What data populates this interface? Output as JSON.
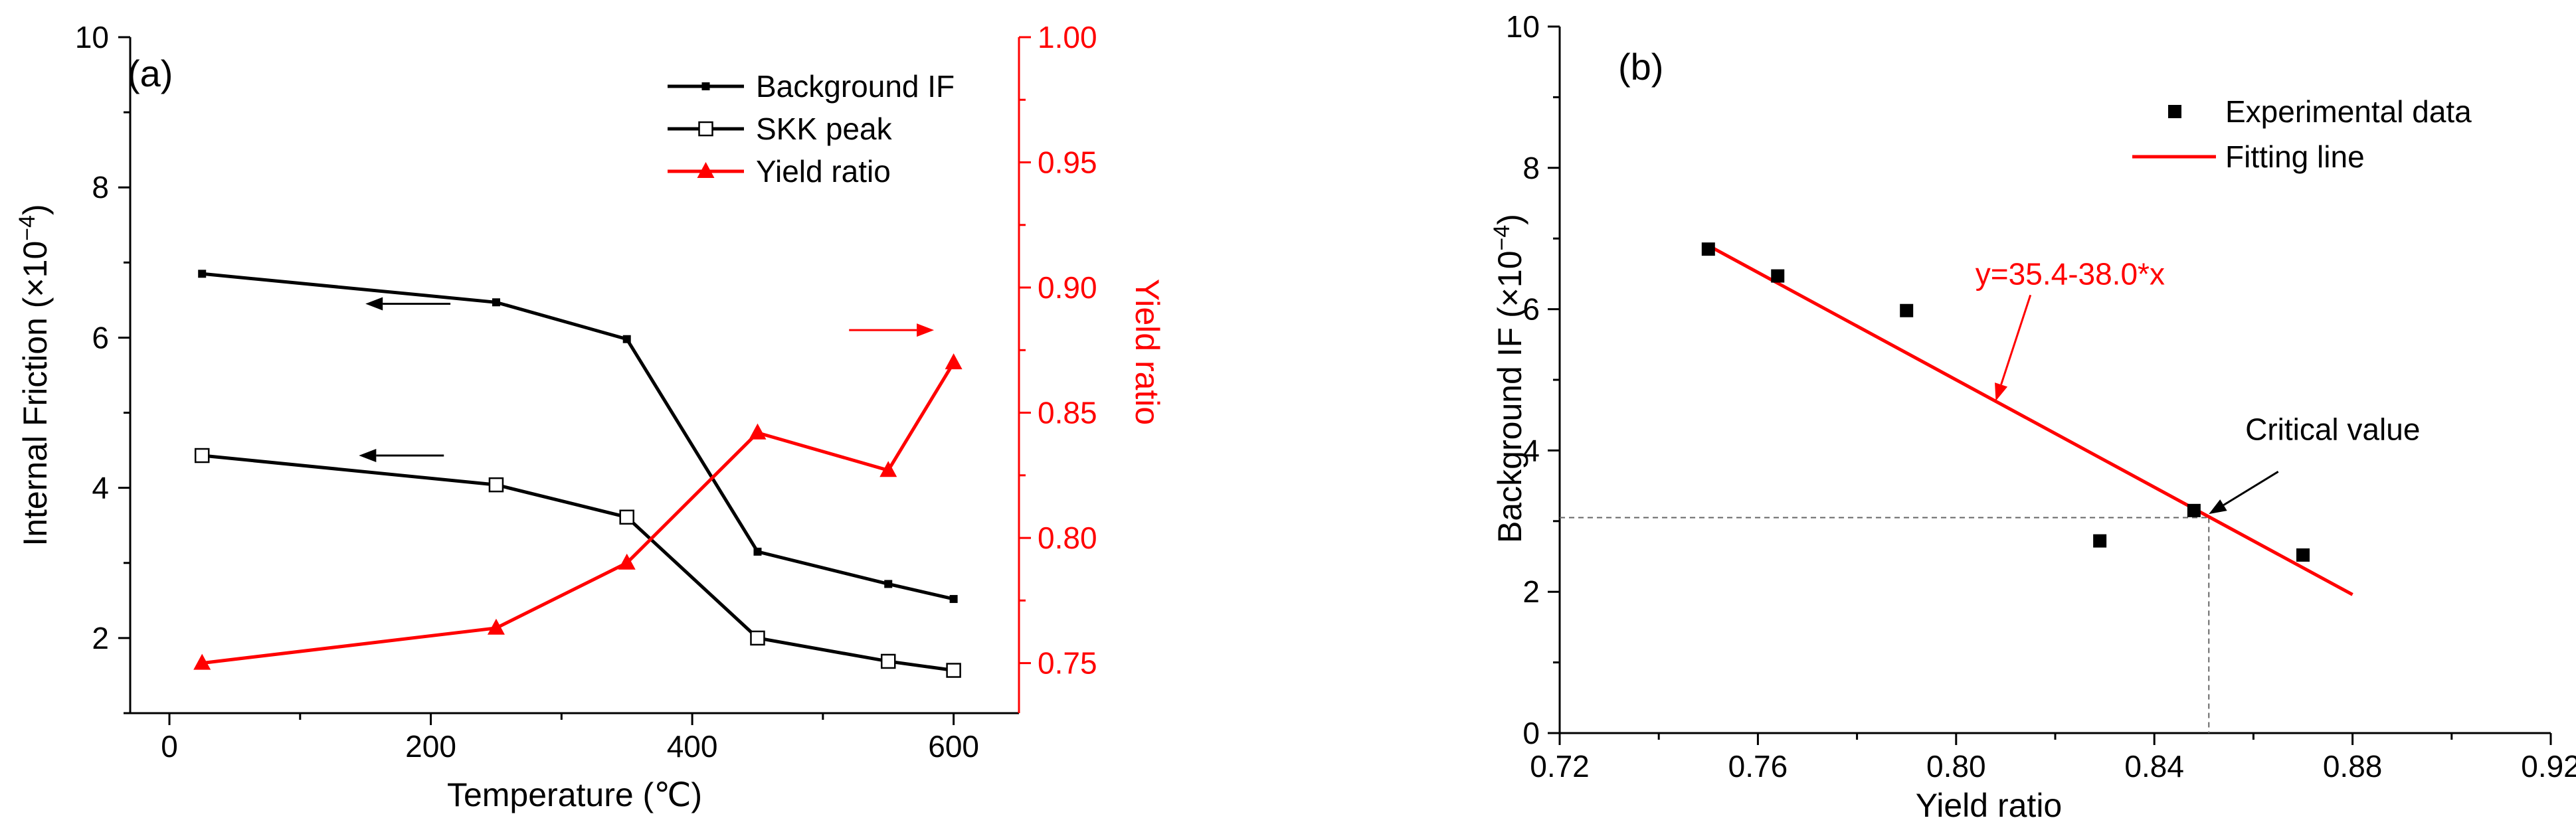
{
  "chart_data": [
    {
      "type": "line",
      "panel_label": "(a)",
      "title": "",
      "xlabel": "Temperature (℃)",
      "ylabel": "Internal Friction",
      "ylabel_unit": "(×10",
      "ylabel_exp": "−4",
      "ylabel_close": ")",
      "y2label": "Yield ratio",
      "xlim": [
        -30,
        650
      ],
      "ylim": [
        1.0,
        10.0
      ],
      "y2lim": [
        0.73,
        1.0
      ],
      "xticks": [
        0,
        200,
        400,
        600
      ],
      "yticks": [
        2,
        4,
        6,
        8,
        10
      ],
      "y2ticks": [
        0.75,
        0.8,
        0.85,
        0.9,
        0.95,
        1.0
      ],
      "xtick_labels": [
        "0",
        "200",
        "400",
        "600"
      ],
      "ytick_labels": [
        "2",
        "4",
        "6",
        "8",
        "10"
      ],
      "y2tick_labels": [
        "0.75",
        "0.80",
        "0.85",
        "0.90",
        "0.95",
        "1.00"
      ],
      "legend_position": "top-right",
      "series": [
        {
          "name": "Background IF",
          "axis": "left",
          "color": "#000000",
          "marker": "small-square",
          "x": [
            25,
            250,
            350,
            450,
            550,
            600
          ],
          "y": [
            6.85,
            6.47,
            5.98,
            3.15,
            2.72,
            2.52
          ]
        },
        {
          "name": "SKK peak",
          "axis": "left",
          "color": "#000000",
          "marker": "open-square",
          "x": [
            25,
            250,
            350,
            450,
            550,
            600
          ],
          "y": [
            4.43,
            4.04,
            3.61,
            2.0,
            1.69,
            1.57
          ]
        },
        {
          "name": "Yield ratio",
          "axis": "right",
          "color": "#ff0000",
          "marker": "filled-triangle",
          "x": [
            25,
            250,
            350,
            450,
            550,
            600
          ],
          "y": [
            0.75,
            0.764,
            0.79,
            0.842,
            0.827,
            0.87
          ]
        }
      ],
      "annotations": [
        {
          "type": "arrow",
          "direction": "left",
          "axis": "left",
          "x_from": 215,
          "x_to": 150,
          "y": 6.45,
          "color": "#000000"
        },
        {
          "type": "arrow",
          "direction": "left",
          "axis": "left",
          "x_from": 210,
          "x_to": 145,
          "y": 4.43,
          "color": "#000000"
        },
        {
          "type": "arrow",
          "direction": "right",
          "axis": "right",
          "x_from": 520,
          "x_to": 585,
          "y": 0.883,
          "color": "#ff0000"
        }
      ]
    },
    {
      "type": "scatter",
      "panel_label": "(b)",
      "title": "",
      "xlabel": "Yield ratio",
      "ylabel": "Background IF",
      "ylabel_unit": "(×10",
      "ylabel_exp": "−4",
      "ylabel_close": ")",
      "xlim": [
        0.72,
        0.92
      ],
      "ylim": [
        0,
        10
      ],
      "xticks": [
        0.72,
        0.76,
        0.8,
        0.84,
        0.88,
        0.92
      ],
      "yticks": [
        0,
        2,
        4,
        6,
        8,
        10
      ],
      "xtick_labels": [
        "0.72",
        "0.76",
        "0.80",
        "0.84",
        "0.88",
        "0.92"
      ],
      "ytick_labels": [
        "0",
        "2",
        "4",
        "6",
        "8",
        "10"
      ],
      "legend_position": "top-right",
      "series": [
        {
          "name": "Experimental data",
          "kind": "scatter",
          "color": "#000000",
          "marker": "filled-square",
          "x": [
            0.75,
            0.764,
            0.79,
            0.829,
            0.848,
            0.87
          ],
          "y": [
            6.85,
            6.47,
            5.98,
            2.72,
            3.15,
            2.52
          ]
        },
        {
          "name": "Fitting line",
          "kind": "line",
          "color": "#ff0000",
          "equation": "y=35.4-38.0*x",
          "x": [
            0.75,
            0.88
          ],
          "y": [
            6.9,
            1.96
          ]
        }
      ],
      "annotations": [
        {
          "type": "text",
          "text": "y=35.4-38.0*x",
          "x": 0.823,
          "y": 6.35,
          "color": "#ff0000"
        },
        {
          "type": "arrow",
          "x_from": 0.815,
          "y_from": 6.2,
          "x_to": 0.808,
          "y_to": 4.7,
          "color": "#ff0000"
        },
        {
          "type": "text",
          "text": "Critical value",
          "x": 0.876,
          "y": 4.15,
          "color": "#000000"
        },
        {
          "type": "arrow",
          "x_from": 0.865,
          "y_from": 3.7,
          "x_to": 0.851,
          "y_to": 3.1,
          "color": "#000000"
        },
        {
          "type": "dashed-guide",
          "x": 0.851,
          "y": 3.05,
          "color": "#666666"
        }
      ]
    }
  ]
}
